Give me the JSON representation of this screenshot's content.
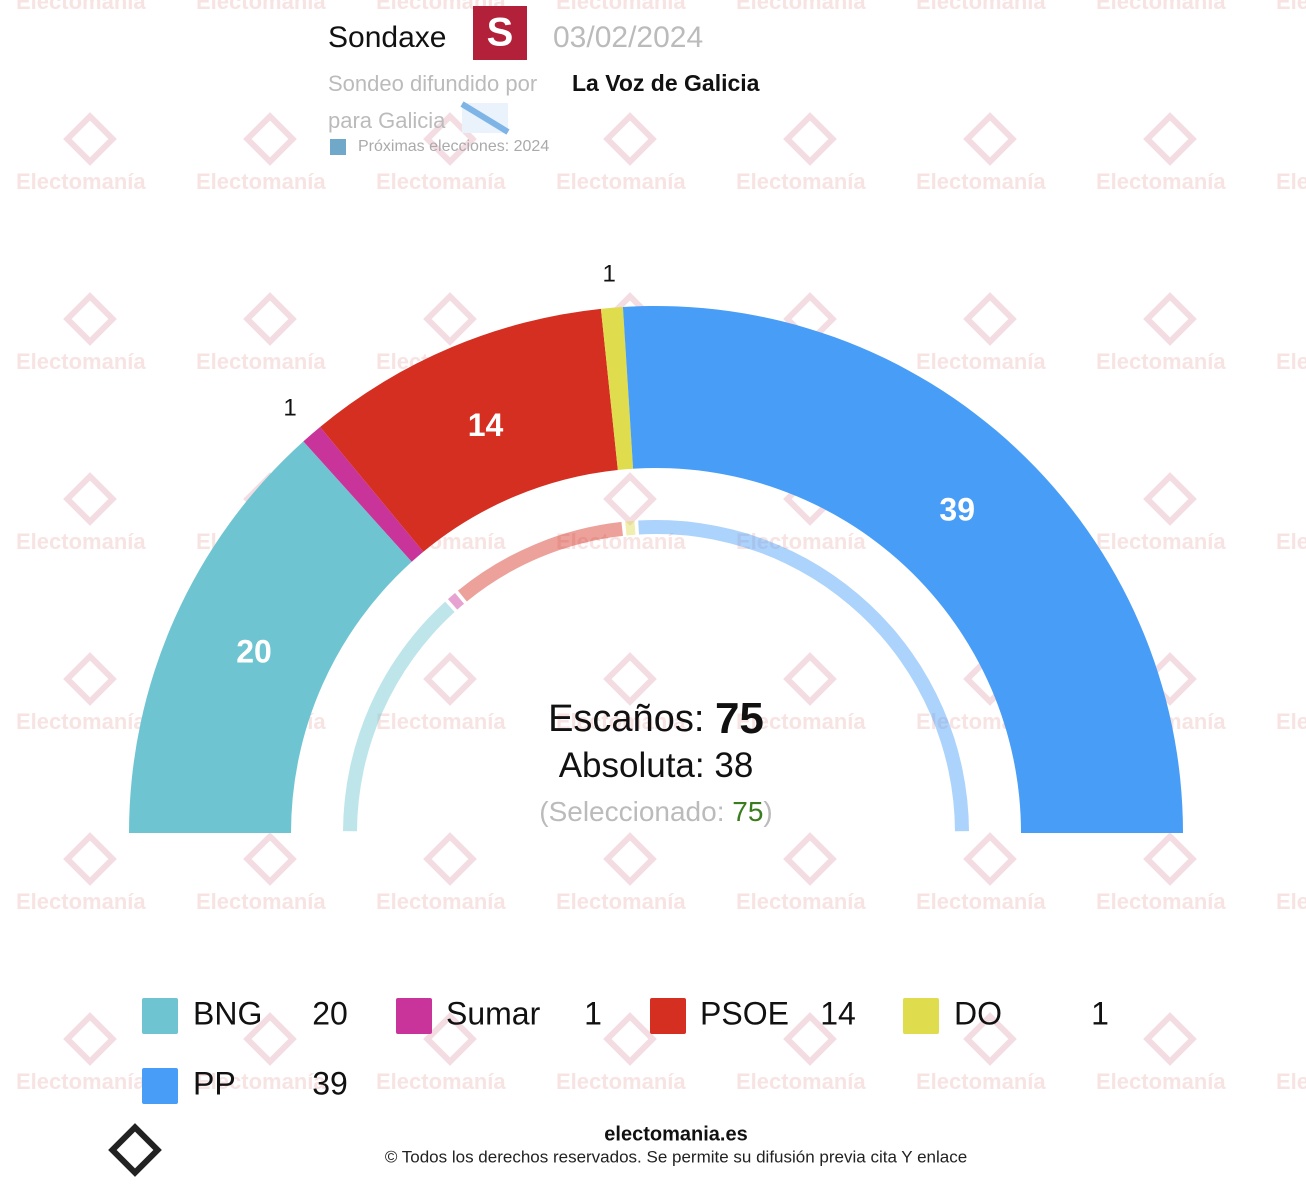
{
  "chart_data": {
    "type": "hemicycle",
    "pollster": "Sondaxe",
    "date": "03/02/2024",
    "published_by_label": "Sondeo difundido por",
    "published_by": "La Voz de Galicia",
    "region": "para Galicia",
    "next_elections": "Próximas elecciones: 2024",
    "watermark": "Electomanía",
    "seats_label": "Escaños:",
    "seats": 75,
    "majority_label": "Absoluta:",
    "majority": 38,
    "selected_label": "(Seleccionado:",
    "selected": 75,
    "selected_close": ")",
    "series": [
      {
        "name": "BNG",
        "color": "#6ec5d1",
        "values": [
          20
        ]
      },
      {
        "name": "Sumar",
        "color": "#c8349a",
        "values": [
          1
        ]
      },
      {
        "name": "PSOE",
        "color": "#d52f22",
        "values": [
          14
        ]
      },
      {
        "name": "DO",
        "color": "#dfdc4d",
        "values": [
          1
        ]
      },
      {
        "name": "PP",
        "color": "#489ef7",
        "values": [
          39
        ]
      }
    ],
    "site": "electomania.es",
    "copyright": "© Todos los derechos reservados. Se permite su difusión previa cita Y enlace"
  }
}
